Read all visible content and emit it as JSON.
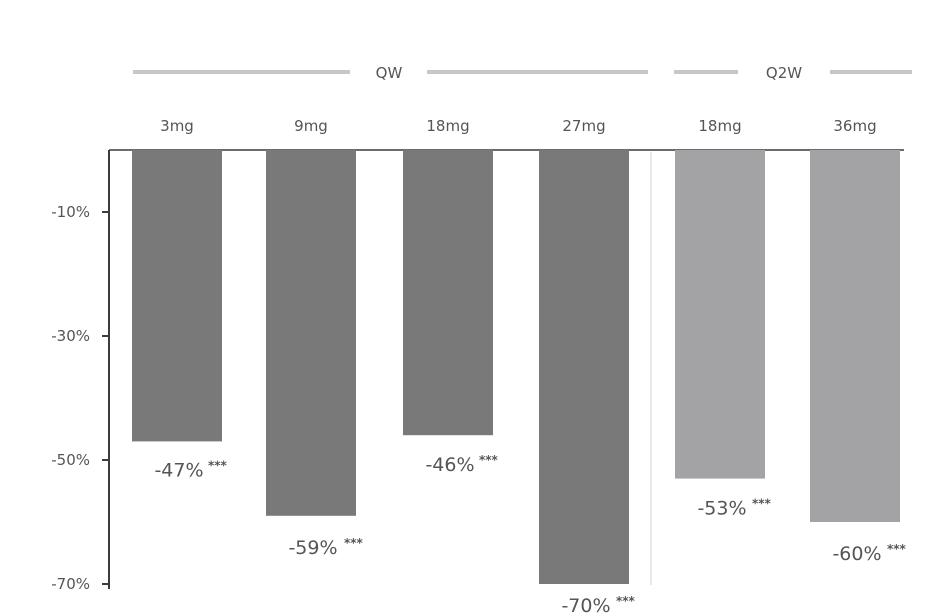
{
  "chart_data": {
    "type": "bar",
    "title": "",
    "xlabel": "",
    "ylabel": "",
    "group_labels": [
      "QW",
      "Q2W"
    ],
    "categories": [
      "3mg",
      "9mg",
      "18mg",
      "27mg",
      "18mg",
      "36mg"
    ],
    "category_groups": [
      "QW",
      "QW",
      "QW",
      "QW",
      "Q2W",
      "Q2W"
    ],
    "values": [
      -47,
      -59,
      -46,
      -70,
      -53,
      -60
    ],
    "value_labels": [
      "-47%",
      "-59%",
      "-46%",
      "-70%",
      "-53%",
      "-60%"
    ],
    "significance": [
      "***",
      "***",
      "***",
      "***",
      "***",
      "***"
    ],
    "yticks": [
      -10,
      -30,
      -50,
      -70
    ],
    "ytick_labels": [
      "-10%",
      "-30%",
      "-50%",
      "-70%"
    ],
    "ylim": [
      -70,
      0
    ],
    "grid": false,
    "colors": {
      "QW": "#797979",
      "Q2W": "#a3a3a5",
      "axis": "#3c3c3c",
      "text": "#555555",
      "bracket": "#c8c8c8"
    }
  }
}
